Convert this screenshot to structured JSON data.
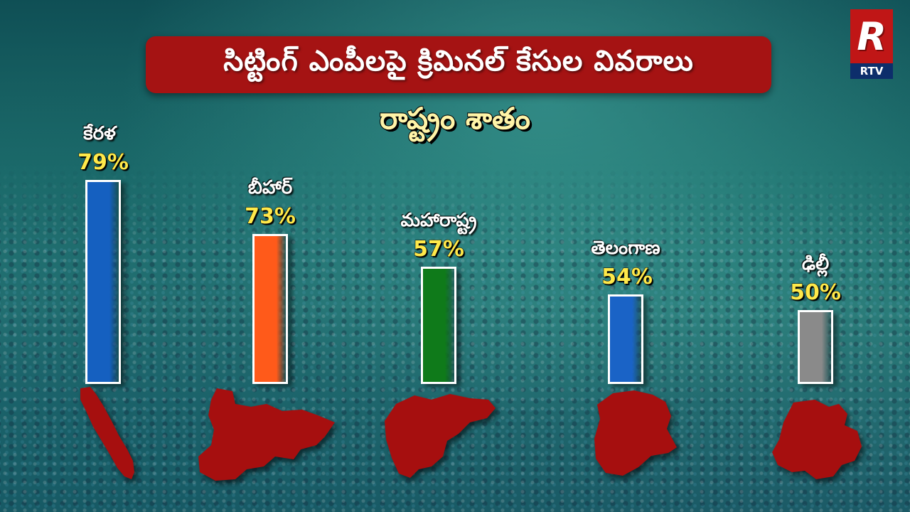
{
  "header": {
    "title": "సిట్టింగ్ ఎంపీలపై క్రిమినల్ కేసుల వివరాలు",
    "subtitle": "రాష్ట్రం శాతం"
  },
  "logo": {
    "text": "RTV",
    "mark": "R"
  },
  "chart_data": {
    "type": "bar",
    "title": "సిట్టింగ్ ఎంపీలపై క్రిమినల్ కేసుల వివరాలు",
    "subtitle": "రాష్ట్రం శాతం",
    "categories": [
      "కేరళ",
      "బీహార్",
      "మహారాష్ట్ర",
      "తెలంగాణ",
      "ఢిల్లీ"
    ],
    "values": [
      79,
      73,
      57,
      54,
      50
    ],
    "labels": [
      "79%",
      "73%",
      "57%",
      "54%",
      "50%"
    ],
    "colors": [
      "#1560c0",
      "#ff5a1a",
      "#0f7a1a",
      "#1a63c6",
      "#8a8a8a"
    ],
    "ylim": [
      0,
      100
    ],
    "grid": false
  },
  "colors": {
    "title_bg": "#a51313",
    "map_fill": "#a60f0f",
    "percent_text": "#ffe94a"
  }
}
